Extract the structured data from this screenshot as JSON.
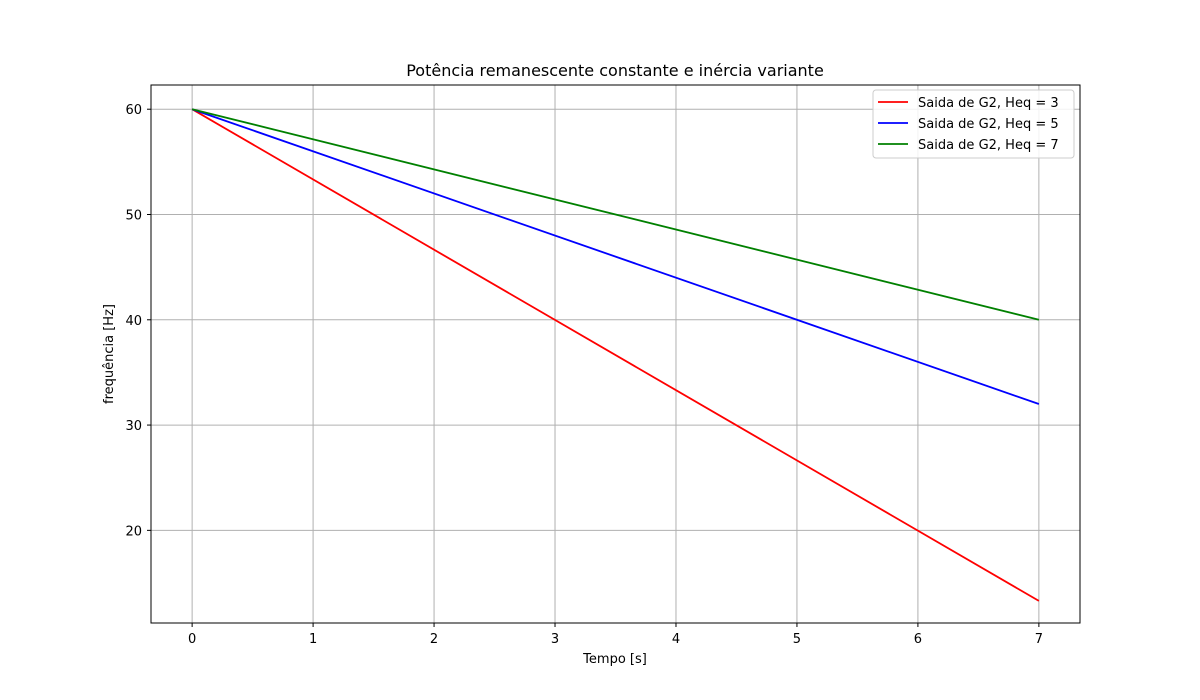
{
  "chart_data": {
    "type": "line",
    "title": "Potência remanescente constante e inércia variante",
    "xlabel": "Tempo [s]",
    "ylabel": "frequência [Hz]",
    "xlim": [
      -0.34,
      7.34
    ],
    "ylim": [
      11.2,
      62.3
    ],
    "xticks": [
      0,
      1,
      2,
      3,
      4,
      5,
      6,
      7
    ],
    "yticks": [
      20,
      30,
      40,
      50,
      60
    ],
    "grid": true,
    "legend_position": "top-right",
    "x": [
      0,
      7
    ],
    "series": [
      {
        "name": "Saida de G2, Heq = 3",
        "color": "#ff0000",
        "values": [
          60,
          13.3
        ]
      },
      {
        "name": "Saida de G2, Heq = 5",
        "color": "#0000ff",
        "values": [
          60,
          32
        ]
      },
      {
        "name": "Saida de G2, Heq = 7",
        "color": "#008000",
        "values": [
          60,
          40
        ]
      }
    ]
  }
}
